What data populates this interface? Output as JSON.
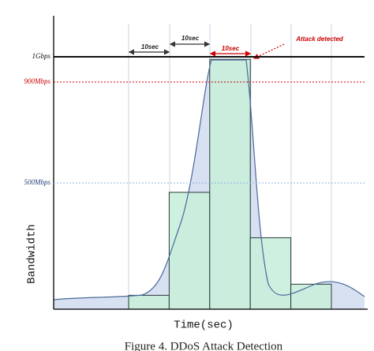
{
  "chart_data": {
    "type": "bar",
    "categories": [
      null,
      null,
      null,
      null,
      null
    ],
    "values": [
      55,
      463,
      990,
      283,
      99
    ],
    "color": "#c9eedb",
    "ylim": [
      0,
      1150
    ],
    "yticks": [
      {
        "value": 500,
        "label": "500Mbps"
      },
      {
        "value": 900,
        "label": "900Mbps"
      },
      {
        "value": 1000,
        "label": "1Gbps"
      }
    ],
    "xlabel": "Time(sec)",
    "ylabel": "Bandwidth",
    "annotations": [
      "10sec",
      "10sec",
      "10sec",
      "Attack detected"
    ],
    "caption": "Figure 4. DDoS Attack Detection"
  }
}
